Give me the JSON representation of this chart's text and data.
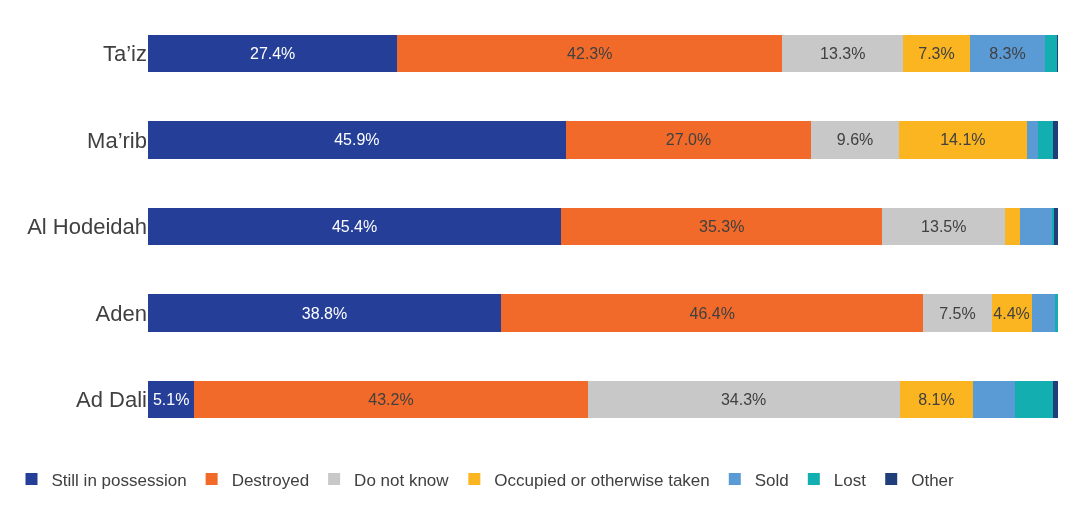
{
  "chart_data": {
    "type": "bar",
    "orientation": "horizontal",
    "stacked": true,
    "categories": [
      "Ta’iz",
      "Ma’rib",
      "Al Hodeidah",
      "Aden",
      "Ad Dali"
    ],
    "xlim": [
      0,
      100
    ],
    "tick_labels": "y",
    "legend": "bottom",
    "series": [
      {
        "name": "Still in possession",
        "color": "#253f99",
        "values": [
          27.4,
          45.9,
          45.4,
          38.8,
          5.1
        ],
        "value_labels": [
          "27.4%",
          "45.9%",
          "45.4%",
          "38.8%",
          "5.1%"
        ]
      },
      {
        "name": "Destroyed",
        "color": "#f26a2a",
        "values": [
          42.3,
          27.0,
          35.3,
          46.4,
          43.2
        ],
        "value_labels": [
          "42.3%",
          "27.0%",
          "35.3%",
          "46.4%",
          "43.2%"
        ]
      },
      {
        "name": "Do not know",
        "color": "#c8c8c8",
        "values": [
          13.3,
          9.6,
          13.5,
          7.5,
          34.3
        ],
        "value_labels": [
          "13.3%",
          "9.6%",
          "13.5%",
          "7.5%",
          "34.3%"
        ]
      },
      {
        "name": "Occupied or otherwise taken",
        "color": "#fbb521",
        "values": [
          7.3,
          14.1,
          1.6,
          4.4,
          8.1
        ],
        "value_labels": [
          "7.3%",
          "14.1%",
          null,
          "4.4%",
          "8.1%"
        ]
      },
      {
        "name": "Sold",
        "color": "#5b9bd5",
        "values": [
          8.3,
          1.2,
          3.5,
          2.6,
          4.6
        ],
        "value_labels": [
          "8.3%",
          null,
          null,
          null,
          null
        ]
      },
      {
        "name": "Lost",
        "color": "#13aeaf",
        "values": [
          1.3,
          1.6,
          0.3,
          0.3,
          4.2
        ],
        "value_labels": [
          null,
          null,
          null,
          null,
          null
        ]
      },
      {
        "name": "Other",
        "color": "#203f7a",
        "values": [
          0.1,
          0.6,
          0.4,
          0.0,
          0.5
        ],
        "value_labels": [
          null,
          null,
          null,
          null,
          null
        ]
      }
    ]
  }
}
